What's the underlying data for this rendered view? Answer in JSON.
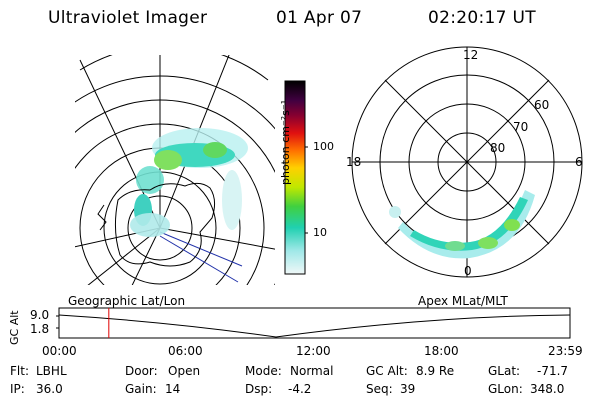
{
  "header": {
    "instrument": "Ultraviolet Imager",
    "date": "01 Apr 07",
    "time": "02:20:17 UT"
  },
  "colorbar": {
    "unit_label": "photon cm⁻²s⁻¹",
    "ticks": [
      "100",
      "10"
    ],
    "scale": "log"
  },
  "geo_map": {
    "label": "Geographic Lat/Lon"
  },
  "polar_map": {
    "label": "Apex MLat/MLT",
    "mlt_labels": {
      "top": "12",
      "left": "18",
      "right": "6",
      "bottom": "0"
    },
    "lat_labels": [
      "60",
      "70",
      "80"
    ]
  },
  "timeline": {
    "axis_label": "GC Alt",
    "y_ticks": [
      "9.0",
      "1.8"
    ],
    "x_ticks": [
      "00:00",
      "06:00",
      "12:00",
      "18:00",
      "23:59"
    ],
    "marker_time": "02:20:17",
    "marker_color": "#e00000"
  },
  "status": {
    "flt_label": "Flt:",
    "flt_value": "LBHL",
    "ip_label": "IP:",
    "ip_value": "36.0",
    "door_label": "Door:",
    "door_value": "Open",
    "gain_label": "Gain:",
    "gain_value": "14",
    "mode_label": "Mode:",
    "mode_value": "Normal",
    "dsp_label": "Dsp:",
    "dsp_value": "-4.2",
    "gcalt_label": "GC Alt:",
    "gcalt_value": "8.9 Re",
    "seq_label": "Seq:",
    "seq_value": "39",
    "glat_label": "GLat:",
    "glat_value": "-71.7",
    "glon_label": "GLon:",
    "glon_value": "348.0"
  }
}
